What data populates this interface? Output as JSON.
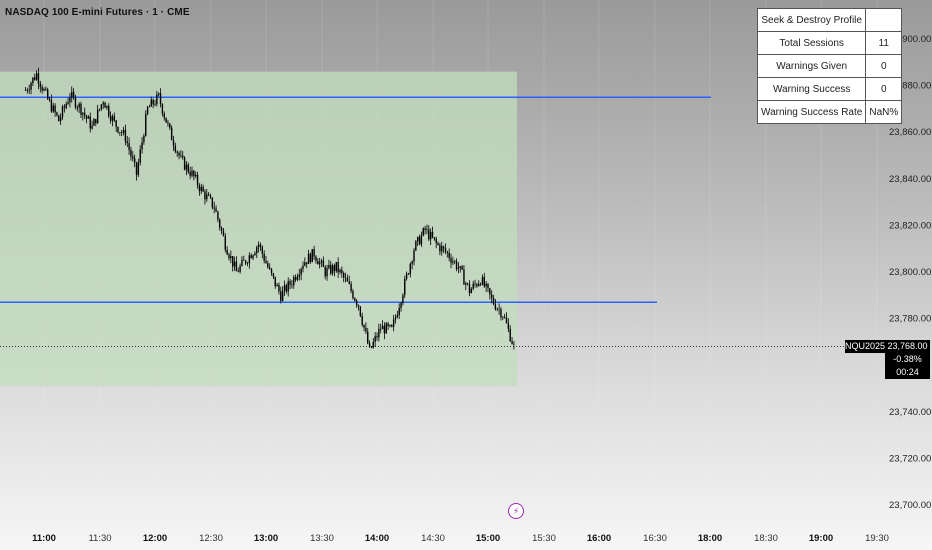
{
  "header": {
    "title": "NASDAQ 100 E-mini Futures · 1 · CME"
  },
  "profile_table": {
    "title": "Seek & Destroy Profile",
    "rows": [
      {
        "label": "Total Sessions",
        "value": "11"
      },
      {
        "label": "Warnings Given",
        "value": "0"
      },
      {
        "label": "Warning Success",
        "value": "0"
      },
      {
        "label": "Warning Success Rate",
        "value": "NaN%"
      }
    ]
  },
  "price_tag": {
    "symbol": "NQU2025",
    "price": "23,768.00",
    "change": "-0.38%",
    "countdown": "00:24"
  },
  "colors": {
    "level_line": "#2962ff",
    "range_box": "#c3dcbf",
    "candle": "#000000",
    "lightning": "#9c27b0"
  },
  "icons": {
    "lightning": "lightning-icon"
  },
  "chart_data": {
    "type": "candlestick",
    "x_axis": {
      "tick_labels": [
        "11:00",
        "11:30",
        "12:00",
        "12:30",
        "13:00",
        "13:30",
        "14:00",
        "14:30",
        "15:00",
        "15:30",
        "16:00",
        "16:30",
        "18:00",
        "18:30",
        "19:00",
        "19:30"
      ],
      "bold_ticks": [
        "11:00",
        "12:00",
        "13:00",
        "14:00",
        "15:00",
        "16:00",
        "18:00",
        "19:00"
      ]
    },
    "y_axis": {
      "tick_labels": [
        "23,900.00",
        "23,880.00",
        "23,860.00",
        "23,840.00",
        "23,820.00",
        "23,800.00",
        "23,780.00",
        "23,740.00",
        "23,720.00",
        "23,700.00"
      ],
      "tick_values": [
        23900,
        23880,
        23860,
        23840,
        23820,
        23800,
        23780,
        23740,
        23720,
        23700
      ],
      "range": [
        23693,
        23905
      ]
    },
    "levels": [
      23875,
      23787
    ],
    "range_box": {
      "high": 23886,
      "low": 23751
    },
    "last_price": 23768,
    "price_path": [
      [
        "10:50",
        23878
      ],
      [
        "10:56",
        23885
      ],
      [
        "11:02",
        23874
      ],
      [
        "11:08",
        23865
      ],
      [
        "11:14",
        23876
      ],
      [
        "11:20",
        23870
      ],
      [
        "11:26",
        23862
      ],
      [
        "11:32",
        23874
      ],
      [
        "11:38",
        23864
      ],
      [
        "11:44",
        23858
      ],
      [
        "11:50",
        23842
      ],
      [
        "11:56",
        23870
      ],
      [
        "12:02",
        23875
      ],
      [
        "12:08",
        23860
      ],
      [
        "12:14",
        23848
      ],
      [
        "12:20",
        23842
      ],
      [
        "12:26",
        23834
      ],
      [
        "12:32",
        23828
      ],
      [
        "12:38",
        23812
      ],
      [
        "12:44",
        23800
      ],
      [
        "12:50",
        23806
      ],
      [
        "12:56",
        23812
      ],
      [
        "13:02",
        23800
      ],
      [
        "13:08",
        23790
      ],
      [
        "13:14",
        23796
      ],
      [
        "13:20",
        23804
      ],
      [
        "13:26",
        23808
      ],
      [
        "13:32",
        23800
      ],
      [
        "13:38",
        23802
      ],
      [
        "13:44",
        23795
      ],
      [
        "13:50",
        23786
      ],
      [
        "13:56",
        23766
      ],
      [
        "14:02",
        23776
      ],
      [
        "14:08",
        23775
      ],
      [
        "14:14",
        23792
      ],
      [
        "14:20",
        23810
      ],
      [
        "14:26",
        23818
      ],
      [
        "14:32",
        23812
      ],
      [
        "14:38",
        23808
      ],
      [
        "14:44",
        23802
      ],
      [
        "14:50",
        23792
      ],
      [
        "14:56",
        23797
      ],
      [
        "15:02",
        23788
      ],
      [
        "15:08",
        23782
      ],
      [
        "15:14",
        23768
      ]
    ],
    "price_noise": 2.5
  }
}
